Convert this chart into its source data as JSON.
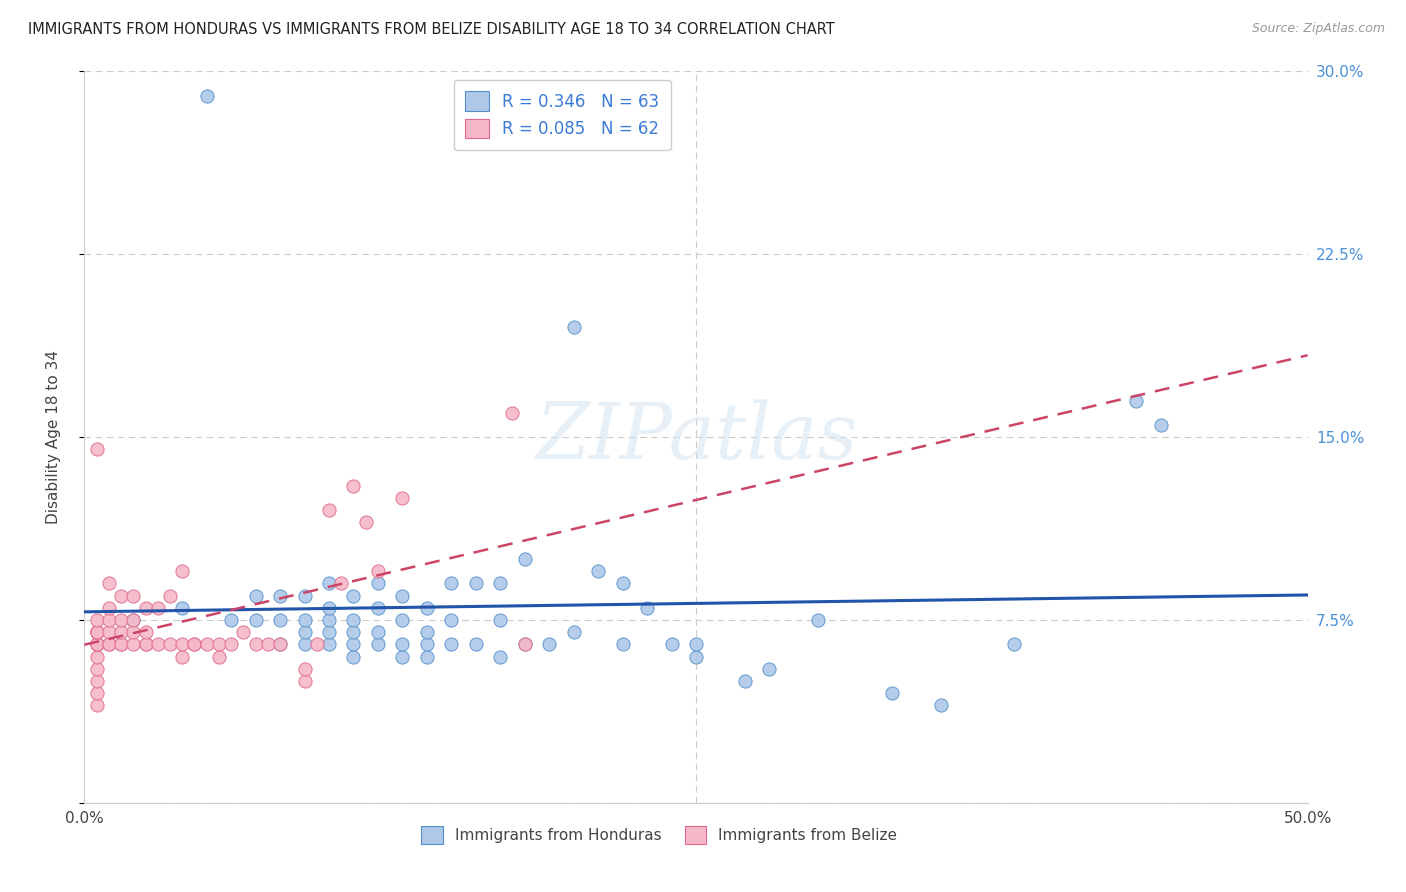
{
  "title": "IMMIGRANTS FROM HONDURAS VS IMMIGRANTS FROM BELIZE DISABILITY AGE 18 TO 34 CORRELATION CHART",
  "source": "Source: ZipAtlas.com",
  "ylabel": "Disability Age 18 to 34",
  "xlim": [
    0.0,
    0.5
  ],
  "ylim": [
    0.0,
    0.3
  ],
  "xticks": [
    0.0,
    0.1,
    0.2,
    0.3,
    0.4,
    0.5
  ],
  "xticklabels": [
    "0.0%",
    "",
    "",
    "",
    "",
    "50.0%"
  ],
  "yticks": [
    0.0,
    0.075,
    0.15,
    0.225,
    0.3
  ],
  "yticklabels_right": [
    "",
    "7.5%",
    "15.0%",
    "22.5%",
    "30.0%"
  ],
  "legend1_R": "0.346",
  "legend1_N": "63",
  "legend2_R": "0.085",
  "legend2_N": "62",
  "blue_face_color": "#adc8e8",
  "blue_edge_color": "#5590cc",
  "pink_face_color": "#f5b8c8",
  "pink_edge_color": "#e06888",
  "blue_line_color": "#2255aa",
  "pink_line_color": "#cc4466",
  "watermark_text": "ZIPatlas",
  "blue_x": [
    0.02,
    0.04,
    0.05,
    0.06,
    0.07,
    0.07,
    0.08,
    0.08,
    0.08,
    0.09,
    0.09,
    0.09,
    0.09,
    0.1,
    0.1,
    0.1,
    0.1,
    0.1,
    0.11,
    0.11,
    0.11,
    0.11,
    0.11,
    0.12,
    0.12,
    0.12,
    0.12,
    0.13,
    0.13,
    0.13,
    0.13,
    0.14,
    0.14,
    0.14,
    0.14,
    0.15,
    0.15,
    0.15,
    0.16,
    0.16,
    0.17,
    0.17,
    0.17,
    0.18,
    0.18,
    0.19,
    0.2,
    0.2,
    0.21,
    0.22,
    0.22,
    0.23,
    0.24,
    0.25,
    0.25,
    0.27,
    0.28,
    0.3,
    0.33,
    0.35,
    0.38,
    0.43,
    0.44
  ],
  "blue_y": [
    0.075,
    0.08,
    0.29,
    0.075,
    0.075,
    0.085,
    0.065,
    0.075,
    0.085,
    0.065,
    0.07,
    0.075,
    0.085,
    0.065,
    0.07,
    0.075,
    0.08,
    0.09,
    0.06,
    0.065,
    0.07,
    0.075,
    0.085,
    0.065,
    0.07,
    0.08,
    0.09,
    0.06,
    0.065,
    0.075,
    0.085,
    0.06,
    0.065,
    0.07,
    0.08,
    0.065,
    0.075,
    0.09,
    0.065,
    0.09,
    0.06,
    0.075,
    0.09,
    0.065,
    0.1,
    0.065,
    0.07,
    0.195,
    0.095,
    0.065,
    0.09,
    0.08,
    0.065,
    0.06,
    0.065,
    0.05,
    0.055,
    0.075,
    0.045,
    0.04,
    0.065,
    0.165,
    0.155
  ],
  "pink_x": [
    0.005,
    0.005,
    0.005,
    0.005,
    0.005,
    0.005,
    0.005,
    0.005,
    0.005,
    0.005,
    0.005,
    0.005,
    0.005,
    0.005,
    0.005,
    0.01,
    0.01,
    0.01,
    0.01,
    0.01,
    0.01,
    0.015,
    0.015,
    0.015,
    0.015,
    0.015,
    0.02,
    0.02,
    0.02,
    0.02,
    0.025,
    0.025,
    0.025,
    0.025,
    0.03,
    0.03,
    0.035,
    0.035,
    0.04,
    0.04,
    0.04,
    0.045,
    0.045,
    0.05,
    0.055,
    0.055,
    0.06,
    0.065,
    0.07,
    0.075,
    0.08,
    0.09,
    0.09,
    0.095,
    0.1,
    0.105,
    0.11,
    0.115,
    0.12,
    0.13,
    0.175,
    0.18
  ],
  "pink_y": [
    0.04,
    0.045,
    0.05,
    0.055,
    0.06,
    0.065,
    0.065,
    0.065,
    0.065,
    0.07,
    0.07,
    0.07,
    0.07,
    0.075,
    0.145,
    0.065,
    0.065,
    0.07,
    0.075,
    0.08,
    0.09,
    0.065,
    0.065,
    0.07,
    0.075,
    0.085,
    0.065,
    0.07,
    0.075,
    0.085,
    0.065,
    0.065,
    0.07,
    0.08,
    0.065,
    0.08,
    0.065,
    0.085,
    0.06,
    0.065,
    0.095,
    0.065,
    0.065,
    0.065,
    0.06,
    0.065,
    0.065,
    0.07,
    0.065,
    0.065,
    0.065,
    0.05,
    0.055,
    0.065,
    0.12,
    0.09,
    0.13,
    0.115,
    0.095,
    0.125,
    0.16,
    0.065
  ]
}
